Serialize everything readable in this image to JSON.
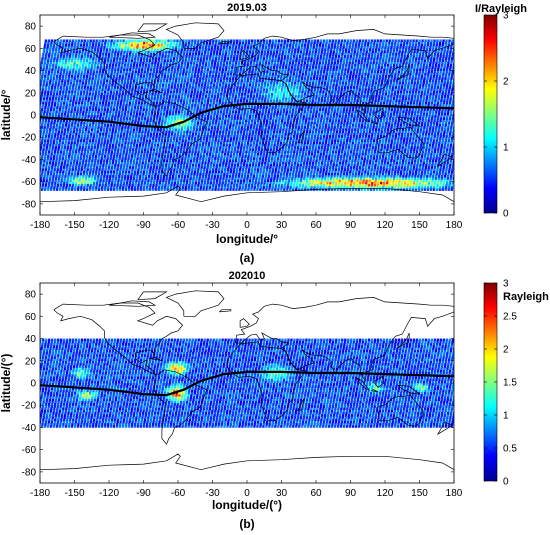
{
  "chart_data": [
    {
      "type": "heatmap",
      "panel_label": "(a)",
      "title": "2019.03",
      "xlabel": "longitude/°",
      "ylabel": "latitude/°",
      "xlim": [
        -180,
        180
      ],
      "ylim": [
        -90,
        90
      ],
      "xticks": [
        -180,
        -150,
        -120,
        -90,
        -60,
        -30,
        0,
        30,
        60,
        90,
        120,
        150,
        180
      ],
      "yticks": [
        80,
        60,
        40,
        20,
        0,
        -20,
        -40,
        -60,
        -80
      ],
      "data_lat_range": [
        -68,
        68
      ],
      "colorbar": {
        "label": "I/Rayleigh",
        "range": [
          0,
          3
        ],
        "ticks": [
          0,
          1,
          2,
          3
        ],
        "colormap": "jet"
      },
      "hotspots": [
        {
          "lon": -90,
          "lat": 62,
          "lon_width": 55,
          "lat_width": 10,
          "intensity": 2.8
        },
        {
          "lon": 105,
          "lat": -62,
          "lon_width": 140,
          "lat_width": 10,
          "intensity": 2.8
        },
        {
          "lon": -145,
          "lat": -60,
          "lon_width": 25,
          "lat_width": 8,
          "intensity": 2.0
        },
        {
          "lon": -60,
          "lat": -8,
          "lon_width": 25,
          "lat_width": 14,
          "intensity": 1.8
        },
        {
          "lon": -150,
          "lat": 45,
          "lon_width": 40,
          "lat_width": 12,
          "intensity": 1.4
        },
        {
          "lon": 30,
          "lat": 20,
          "lon_width": 40,
          "lat_width": 20,
          "intensity": 1.2
        }
      ],
      "magnetic_equator": [
        [
          -180,
          -2
        ],
        [
          -120,
          -6
        ],
        [
          -90,
          -10
        ],
        [
          -70,
          -11
        ],
        [
          -55,
          -6
        ],
        [
          -40,
          2
        ],
        [
          -20,
          8
        ],
        [
          0,
          10
        ],
        [
          30,
          10
        ],
        [
          60,
          9
        ],
        [
          90,
          9
        ],
        [
          120,
          8
        ],
        [
          150,
          7
        ],
        [
          180,
          6
        ]
      ]
    },
    {
      "type": "heatmap",
      "panel_label": "(b)",
      "title": "202010",
      "xlabel": "longitude/(°)",
      "ylabel": "latitude/(°)",
      "xlim": [
        -180,
        180
      ],
      "ylim": [
        -90,
        90
      ],
      "xticks": [
        -180,
        -150,
        -120,
        -90,
        -60,
        -30,
        0,
        30,
        60,
        90,
        120,
        150,
        180
      ],
      "yticks": [
        80,
        60,
        40,
        20,
        0,
        -20,
        -40,
        -60,
        -80
      ],
      "data_lat_range": [
        -40,
        40
      ],
      "colorbar": {
        "label": "Rayleigh",
        "range": [
          0,
          3
        ],
        "ticks": [
          0,
          0.5,
          1,
          1.5,
          2,
          2.5,
          3
        ],
        "colormap": "jet"
      },
      "hotspots": [
        {
          "lon": -62,
          "lat": -10,
          "lon_width": 18,
          "lat_width": 14,
          "intensity": 2.7
        },
        {
          "lon": -62,
          "lat": 12,
          "lon_width": 20,
          "lat_width": 12,
          "intensity": 2.5
        },
        {
          "lon": -140,
          "lat": -12,
          "lon_width": 18,
          "lat_width": 10,
          "intensity": 1.8
        },
        {
          "lon": -145,
          "lat": 8,
          "lon_width": 16,
          "lat_width": 10,
          "intensity": 1.7
        },
        {
          "lon": 25,
          "lat": 8,
          "lon_width": 28,
          "lat_width": 14,
          "intensity": 1.6
        },
        {
          "lon": 110,
          "lat": -5,
          "lon_width": 14,
          "lat_width": 8,
          "intensity": 1.8
        },
        {
          "lon": 150,
          "lat": -5,
          "lon_width": 14,
          "lat_width": 8,
          "intensity": 1.8
        }
      ],
      "magnetic_equator": [
        [
          -180,
          -2
        ],
        [
          -120,
          -6
        ],
        [
          -90,
          -10
        ],
        [
          -70,
          -11
        ],
        [
          -55,
          -6
        ],
        [
          -40,
          2
        ],
        [
          -20,
          8
        ],
        [
          0,
          10
        ],
        [
          30,
          10
        ],
        [
          60,
          9
        ],
        [
          90,
          9
        ],
        [
          120,
          8
        ],
        [
          150,
          7
        ],
        [
          180,
          6
        ]
      ]
    }
  ]
}
